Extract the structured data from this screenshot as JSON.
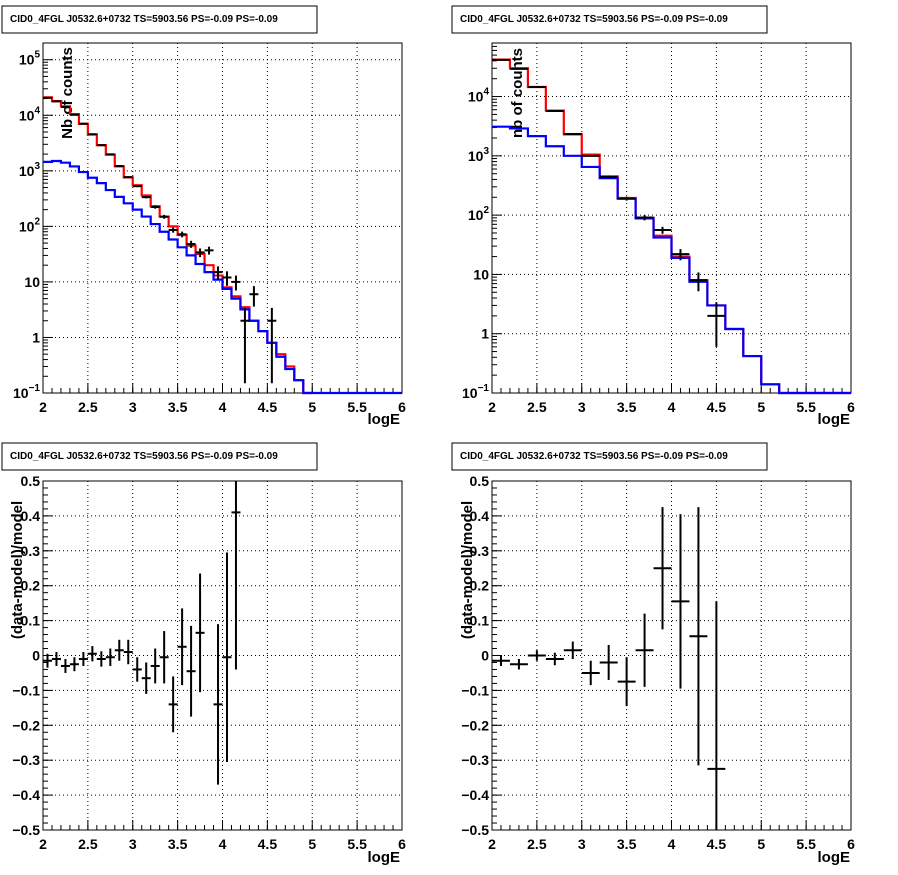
{
  "chart_data": [
    {
      "id": "counts-fine",
      "type": "histogram",
      "title": "CID0_4FGL J0532.6+0732 TS=5903.56 PS=-0.09 PS=-0.09",
      "xlabel": "logE",
      "ylabel": "Nb of counts",
      "xlim": [
        2,
        6
      ],
      "ylim": [
        0.1,
        200000
      ],
      "yscale": "log",
      "grid": true,
      "x_ticks": [
        {
          "v": 2,
          "label": "2"
        },
        {
          "v": 2.5,
          "label": "2.5"
        },
        {
          "v": 3,
          "label": "3"
        },
        {
          "v": 3.5,
          "label": "3.5"
        },
        {
          "v": 4,
          "label": "4"
        },
        {
          "v": 4.5,
          "label": "4.5"
        },
        {
          "v": 5,
          "label": "5"
        },
        {
          "v": 5.5,
          "label": "5.5"
        },
        {
          "v": 6,
          "label": "6"
        }
      ],
      "y_ticks": [
        {
          "v": 0.1,
          "base": "10",
          "exp": "−1"
        },
        {
          "v": 1,
          "label": "1"
        },
        {
          "v": 10,
          "label": "10"
        },
        {
          "v": 100,
          "base": "10",
          "exp": "2"
        },
        {
          "v": 1000,
          "base": "10",
          "exp": "3"
        },
        {
          "v": 10000,
          "base": "10",
          "exp": "4"
        },
        {
          "v": 100000,
          "base": "10",
          "exp": "5"
        }
      ],
      "bin_width": 0.1,
      "bin_edges_start": 2,
      "series": [
        {
          "role": "model-total",
          "color": "#ff0000",
          "values": [
            21000,
            18000,
            14500,
            10500,
            7000,
            4500,
            2900,
            1950,
            1200,
            760,
            550,
            360,
            230,
            150,
            100,
            70,
            45,
            32,
            20,
            13,
            8,
            5.5,
            3.5,
            2,
            1.3,
            0.8,
            0.5,
            0.3,
            0.17,
            0.1
          ]
        },
        {
          "role": "model-component",
          "color": "#0000ff",
          "values": [
            1450,
            1500,
            1400,
            1200,
            950,
            750,
            600,
            450,
            340,
            260,
            200,
            150,
            110,
            80,
            58,
            42,
            30,
            21,
            15,
            11,
            7.5,
            5,
            3.2,
            2,
            1.3,
            0.8,
            0.45,
            0.27,
            0.17,
            0.1,
            0.1,
            0.1,
            0.1,
            0.1,
            0.1,
            0.1,
            0.1,
            0.1,
            0.1,
            0.1
          ]
        }
      ],
      "points": [
        {
          "x": 2.05,
          "y": 20600,
          "ey": 150
        },
        {
          "x": 2.15,
          "y": 17800,
          "ey": 140
        },
        {
          "x": 2.25,
          "y": 14100,
          "ey": 120
        },
        {
          "x": 2.35,
          "y": 10200,
          "ey": 100
        },
        {
          "x": 2.45,
          "y": 7050,
          "ey": 85
        },
        {
          "x": 2.55,
          "y": 4550,
          "ey": 68
        },
        {
          "x": 2.65,
          "y": 2890,
          "ey": 54
        },
        {
          "x": 2.75,
          "y": 1980,
          "ey": 45
        },
        {
          "x": 2.85,
          "y": 1220,
          "ey": 35
        },
        {
          "x": 2.95,
          "y": 770,
          "ey": 28
        },
        {
          "x": 3.05,
          "y": 530,
          "ey": 23
        },
        {
          "x": 3.15,
          "y": 336,
          "ey": 18
        },
        {
          "x": 3.25,
          "y": 223,
          "ey": 15
        },
        {
          "x": 3.35,
          "y": 149,
          "ey": 12
        },
        {
          "x": 3.45,
          "y": 86,
          "ey": 9
        },
        {
          "x": 3.55,
          "y": 72,
          "ey": 8.5
        },
        {
          "x": 3.65,
          "y": 48,
          "ey": 7
        },
        {
          "x": 3.75,
          "y": 34,
          "ey": 6
        },
        {
          "x": 3.85,
          "y": 37,
          "ey": 6
        },
        {
          "x": 3.95,
          "y": 15,
          "ey": 4
        },
        {
          "x": 4.05,
          "y": 12,
          "ey": 3.5
        },
        {
          "x": 4.15,
          "y": 10,
          "ey": 3
        },
        {
          "x": 4.25,
          "y": 2,
          "ey": 1.4,
          "ey_lo": 1.85
        },
        {
          "x": 4.35,
          "y": 6,
          "ey": 2.4
        },
        {
          "x": 4.55,
          "y": 2,
          "ey": 1.4,
          "ey_lo": 1.85
        }
      ]
    },
    {
      "id": "counts-coarse",
      "type": "histogram",
      "title": "CID0_4FGL J0532.6+0732 TS=5903.56 PS=-0.09 PS=-0.09",
      "xlabel": "logE",
      "ylabel": "nb of counts",
      "xlim": [
        2,
        6
      ],
      "ylim": [
        0.1,
        80000
      ],
      "yscale": "log",
      "grid": true,
      "x_ticks": [
        {
          "v": 2,
          "label": "2"
        },
        {
          "v": 2.5,
          "label": "2.5"
        },
        {
          "v": 3,
          "label": "3"
        },
        {
          "v": 3.5,
          "label": "3.5"
        },
        {
          "v": 4,
          "label": "4"
        },
        {
          "v": 4.5,
          "label": "4.5"
        },
        {
          "v": 5,
          "label": "5"
        },
        {
          "v": 5.5,
          "label": "5.5"
        },
        {
          "v": 6,
          "label": "6"
        }
      ],
      "y_ticks": [
        {
          "v": 0.1,
          "base": "10",
          "exp": "−1"
        },
        {
          "v": 1,
          "label": "1"
        },
        {
          "v": 10,
          "label": "10"
        },
        {
          "v": 100,
          "base": "10",
          "exp": "2"
        },
        {
          "v": 1000,
          "base": "10",
          "exp": "3"
        },
        {
          "v": 10000,
          "base": "10",
          "exp": "4"
        }
      ],
      "bin_width": 0.2,
      "bin_edges_start": 2,
      "series": [
        {
          "role": "model-total",
          "color": "#ff0000",
          "values": [
            42000,
            30000,
            14500,
            5800,
            2300,
            1050,
            450,
            195,
            90,
            45,
            20,
            8,
            3,
            1.2,
            0.42,
            0.14,
            0.1,
            0.1,
            0.1,
            0.1
          ]
        },
        {
          "role": "model-component",
          "color": "#0000ff",
          "values": [
            3100,
            2900,
            2150,
            1450,
            1000,
            650,
            420,
            190,
            88,
            42,
            19,
            7.5,
            3,
            1.2,
            0.42,
            0.14,
            0.1,
            0.1,
            0.1,
            0.1
          ]
        }
      ],
      "points": [
        {
          "x": 2.1,
          "y": 41500,
          "ey": 200
        },
        {
          "x": 2.3,
          "y": 29300,
          "ey": 170
        },
        {
          "x": 2.5,
          "y": 14500,
          "ey": 120
        },
        {
          "x": 2.7,
          "y": 5700,
          "ey": 75
        },
        {
          "x": 2.9,
          "y": 2340,
          "ey": 48
        },
        {
          "x": 3.1,
          "y": 1000,
          "ey": 32
        },
        {
          "x": 3.3,
          "y": 440,
          "ey": 21
        },
        {
          "x": 3.5,
          "y": 190,
          "ey": 14
        },
        {
          "x": 3.7,
          "y": 91,
          "ey": 9.5
        },
        {
          "x": 3.9,
          "y": 56,
          "ey": 7.5
        },
        {
          "x": 4.1,
          "y": 22,
          "ey": 4.7
        },
        {
          "x": 4.3,
          "y": 8,
          "ey": 2.8
        },
        {
          "x": 4.5,
          "y": 2,
          "ey": 1.4,
          "ey_lo": 1.4
        }
      ]
    },
    {
      "id": "residual-fine",
      "type": "scatter",
      "title": "CID0_4FGL J0532.6+0732 TS=5903.56 PS=-0.09 PS=-0.09",
      "xlabel": "logE",
      "ylabel": "(data-model)/model",
      "xlim": [
        2,
        6
      ],
      "ylim": [
        -0.5,
        0.5
      ],
      "yscale": "linear",
      "grid": true,
      "x_ticks": [
        {
          "v": 2,
          "label": "2"
        },
        {
          "v": 2.5,
          "label": "2.5"
        },
        {
          "v": 3,
          "label": "3"
        },
        {
          "v": 3.5,
          "label": "3.5"
        },
        {
          "v": 4,
          "label": "4"
        },
        {
          "v": 4.5,
          "label": "4.5"
        },
        {
          "v": 5,
          "label": "5"
        },
        {
          "v": 5.5,
          "label": "5.5"
        },
        {
          "v": 6,
          "label": "6"
        }
      ],
      "y_ticks": [
        {
          "v": -0.5,
          "label": "−0.5"
        },
        {
          "v": -0.4,
          "label": "−0.4"
        },
        {
          "v": -0.3,
          "label": "−0.3"
        },
        {
          "v": -0.2,
          "label": "−0.2"
        },
        {
          "v": -0.1,
          "label": "−0.1"
        },
        {
          "v": 0,
          "label": "0"
        },
        {
          "v": 0.1,
          "label": "0.1"
        },
        {
          "v": 0.2,
          "label": "0.2"
        },
        {
          "v": 0.3,
          "label": "0.3"
        },
        {
          "v": 0.4,
          "label": "0.4"
        },
        {
          "v": 0.5,
          "label": "0.5"
        }
      ],
      "bin_width": 0.1,
      "points": [
        {
          "x": 2.05,
          "y": -0.015,
          "ey": 0.02
        },
        {
          "x": 2.15,
          "y": -0.01,
          "ey": 0.02
        },
        {
          "x": 2.25,
          "y": -0.03,
          "ey": 0.02
        },
        {
          "x": 2.35,
          "y": -0.025,
          "ey": 0.02
        },
        {
          "x": 2.45,
          "y": -0.01,
          "ey": 0.02
        },
        {
          "x": 2.55,
          "y": 0.005,
          "ey": 0.022
        },
        {
          "x": 2.65,
          "y": -0.01,
          "ey": 0.022
        },
        {
          "x": 2.75,
          "y": -0.005,
          "ey": 0.025
        },
        {
          "x": 2.85,
          "y": 0.015,
          "ey": 0.03
        },
        {
          "x": 2.95,
          "y": 0.01,
          "ey": 0.035
        },
        {
          "x": 3.05,
          "y": -0.04,
          "ey": 0.035
        },
        {
          "x": 3.15,
          "y": -0.065,
          "ey": 0.045
        },
        {
          "x": 3.25,
          "y": -0.03,
          "ey": 0.05
        },
        {
          "x": 3.35,
          "y": -0.005,
          "ey": 0.075
        },
        {
          "x": 3.45,
          "y": -0.14,
          "ey": 0.08
        },
        {
          "x": 3.55,
          "y": 0.025,
          "ey": 0.11
        },
        {
          "x": 3.65,
          "y": -0.045,
          "ey": 0.13
        },
        {
          "x": 3.75,
          "y": 0.065,
          "ey": 0.17
        },
        {
          "x": 3.95,
          "y": -0.14,
          "ey": 0.23
        },
        {
          "x": 4.05,
          "y": -0.005,
          "ey": 0.3
        },
        {
          "x": 4.15,
          "y": 0.41,
          "ey": 0.45
        }
      ]
    },
    {
      "id": "residual-coarse",
      "type": "scatter",
      "title": "CID0_4FGL J0532.6+0732 TS=5903.56 PS=-0.09 PS=-0.09",
      "xlabel": "logE",
      "ylabel": "(data-model)/model",
      "xlim": [
        2,
        6
      ],
      "ylim": [
        -0.5,
        0.5
      ],
      "yscale": "linear",
      "grid": true,
      "x_ticks": [
        {
          "v": 2,
          "label": "2"
        },
        {
          "v": 2.5,
          "label": "2.5"
        },
        {
          "v": 3,
          "label": "3"
        },
        {
          "v": 3.5,
          "label": "3.5"
        },
        {
          "v": 4,
          "label": "4"
        },
        {
          "v": 4.5,
          "label": "4.5"
        },
        {
          "v": 5,
          "label": "5"
        },
        {
          "v": 5.5,
          "label": "5.5"
        },
        {
          "v": 6,
          "label": "6"
        }
      ],
      "y_ticks": [
        {
          "v": -0.5,
          "label": "−0.5"
        },
        {
          "v": -0.4,
          "label": "−0.4"
        },
        {
          "v": -0.3,
          "label": "−0.3"
        },
        {
          "v": -0.2,
          "label": "−0.2"
        },
        {
          "v": -0.1,
          "label": "−0.1"
        },
        {
          "v": 0,
          "label": "0"
        },
        {
          "v": 0.1,
          "label": "0.1"
        },
        {
          "v": 0.2,
          "label": "0.2"
        },
        {
          "v": 0.3,
          "label": "0.3"
        },
        {
          "v": 0.4,
          "label": "0.4"
        },
        {
          "v": 0.5,
          "label": "0.5"
        }
      ],
      "bin_width": 0.2,
      "points": [
        {
          "x": 2.1,
          "y": -0.015,
          "ey": 0.015
        },
        {
          "x": 2.3,
          "y": -0.025,
          "ey": 0.015
        },
        {
          "x": 2.5,
          "y": 0.0,
          "ey": 0.015
        },
        {
          "x": 2.7,
          "y": -0.01,
          "ey": 0.018
        },
        {
          "x": 2.9,
          "y": 0.015,
          "ey": 0.025
        },
        {
          "x": 3.1,
          "y": -0.05,
          "ey": 0.035
        },
        {
          "x": 3.3,
          "y": -0.02,
          "ey": 0.05
        },
        {
          "x": 3.5,
          "y": -0.075,
          "ey": 0.07
        },
        {
          "x": 3.7,
          "y": 0.015,
          "ey": 0.105
        },
        {
          "x": 3.9,
          "y": 0.25,
          "ey": 0.175
        },
        {
          "x": 4.1,
          "y": 0.155,
          "ey": 0.25
        },
        {
          "x": 4.3,
          "y": 0.055,
          "ey": 0.37
        },
        {
          "x": 4.5,
          "y": -0.325,
          "ey": 0.48
        }
      ]
    }
  ]
}
